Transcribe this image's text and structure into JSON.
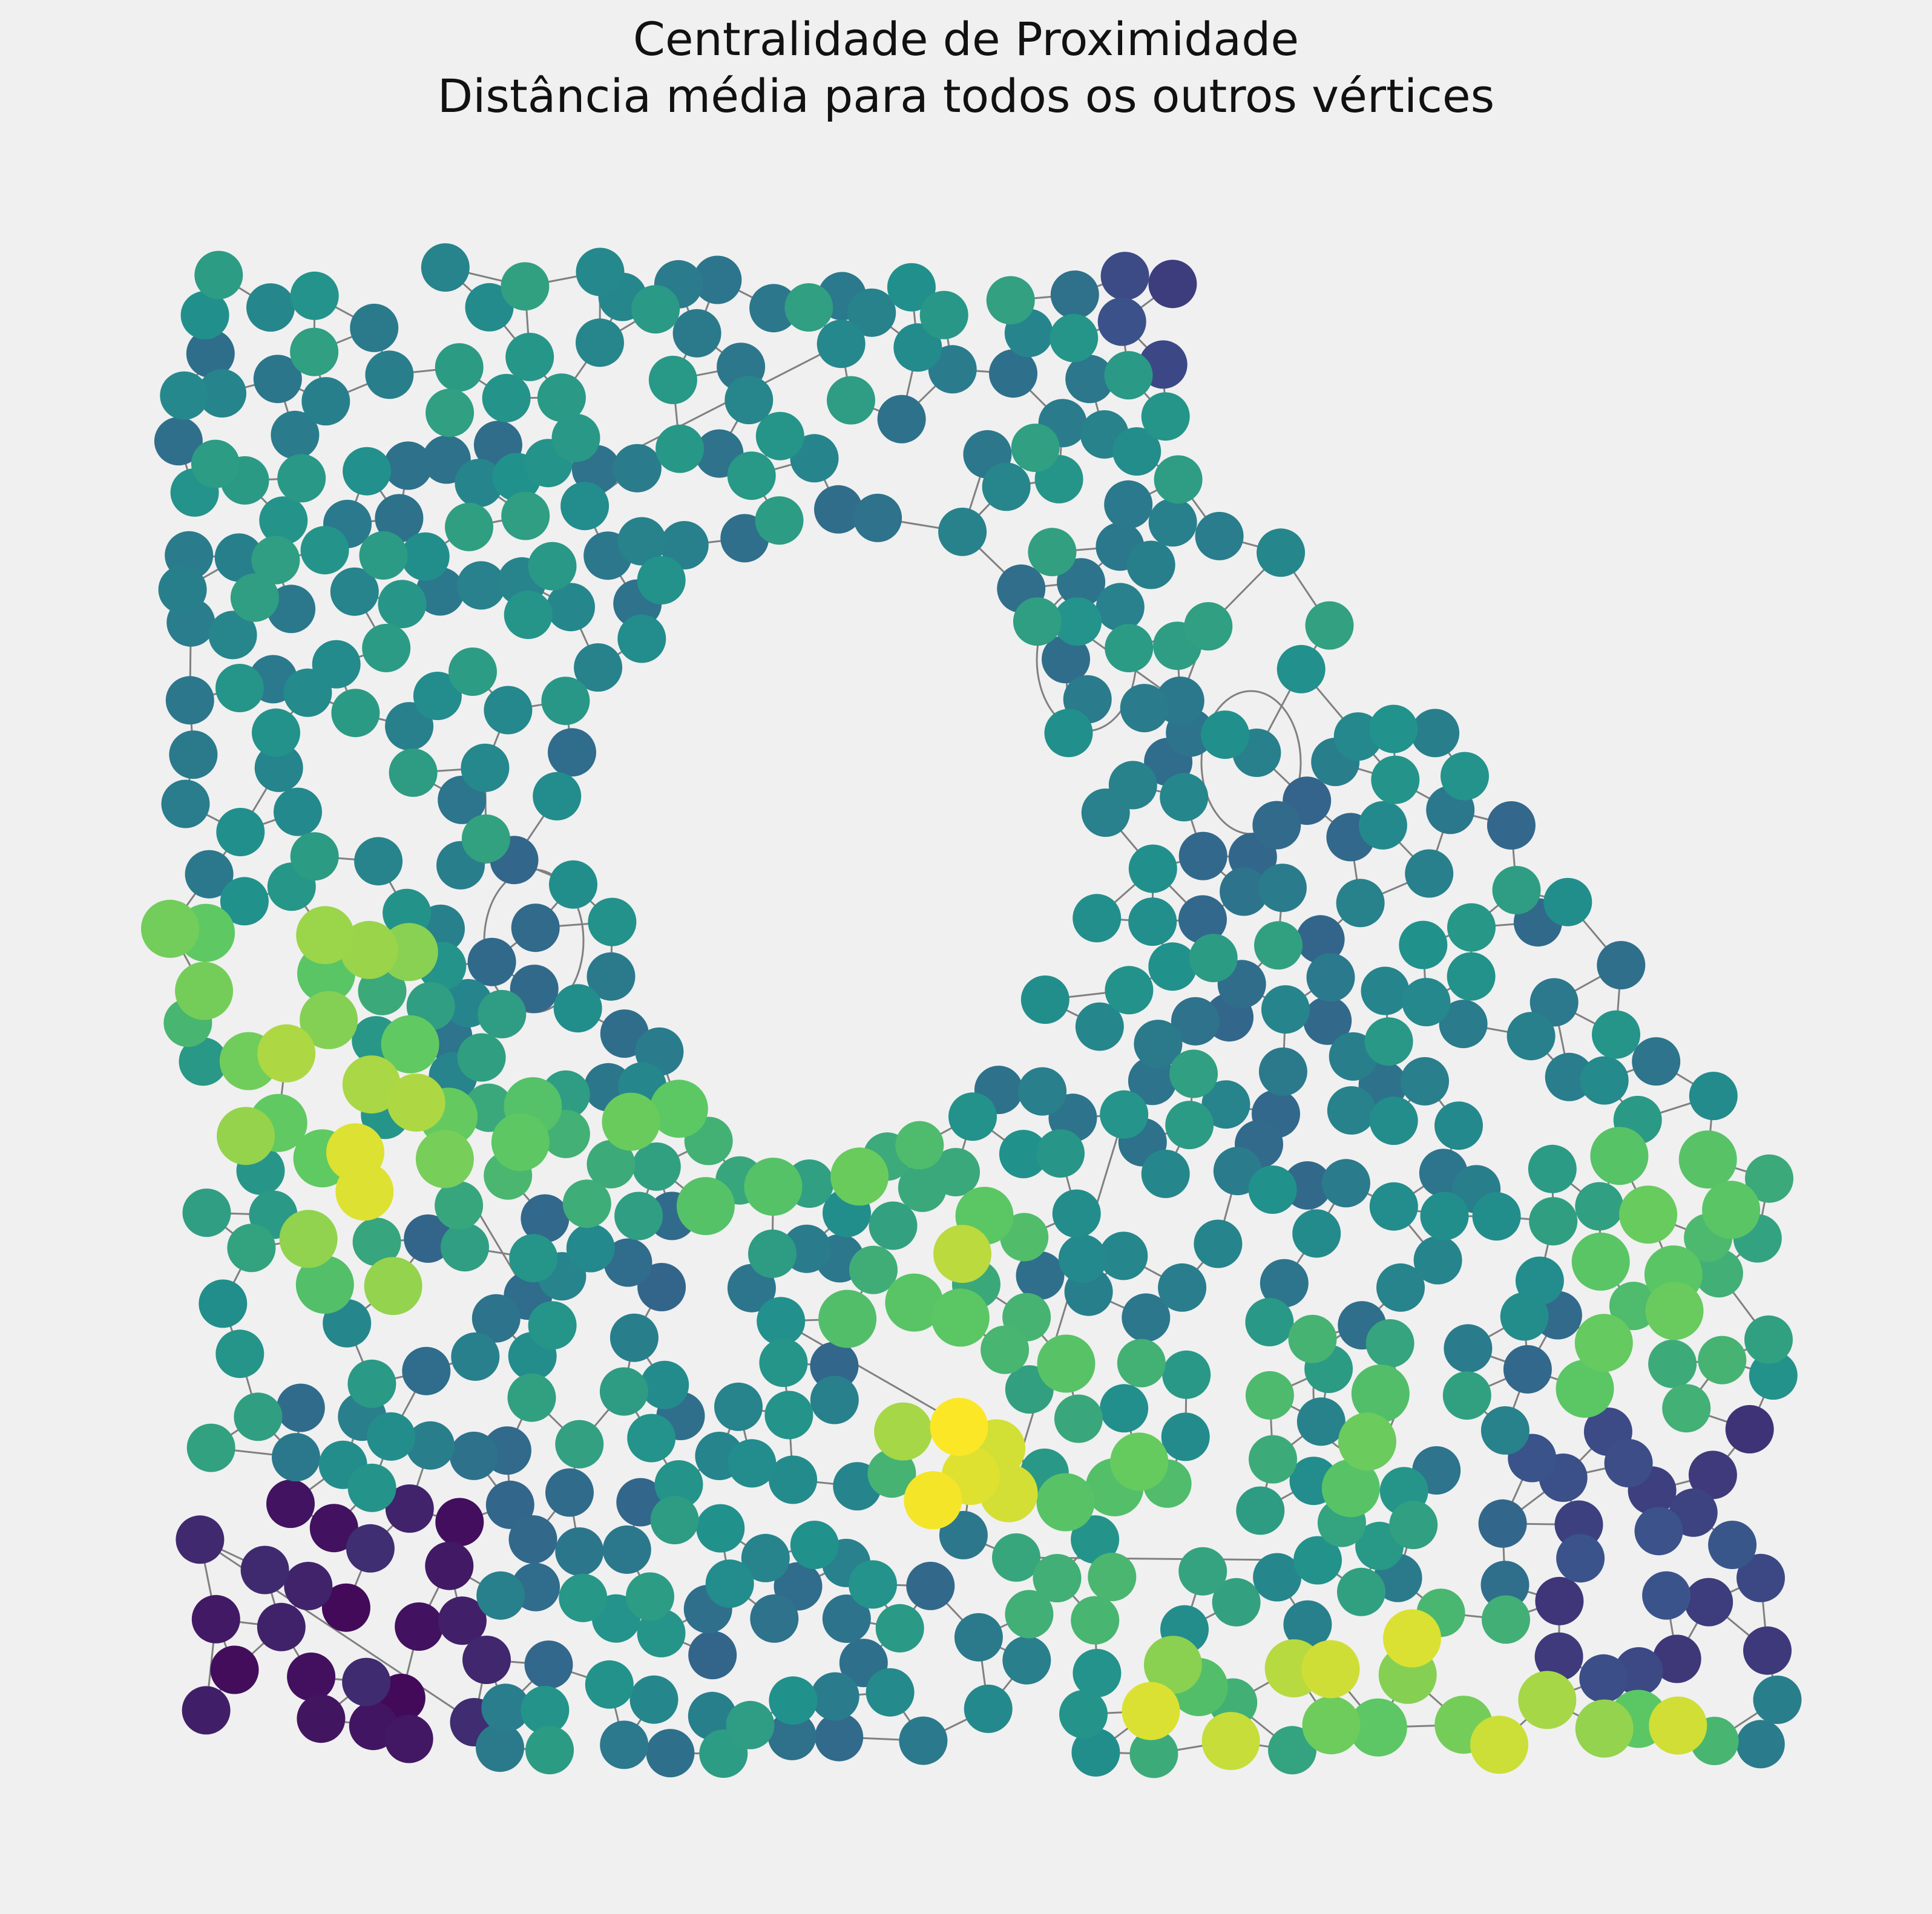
{
  "title": {
    "line1": "Centralidade de Proximidade",
    "line2": "Distância média para todos os outros vértices"
  },
  "chart_data": {
    "type": "network",
    "title": "Centralidade de Proximidade\nDistância média para todos os outros vértices",
    "colormap": "viridis",
    "colormap_stops": [
      "#440154",
      "#3b528b",
      "#21918c",
      "#5ec962",
      "#fde725"
    ],
    "edge_color": "#808080",
    "background": "#f0f0f0",
    "axes_visible": false,
    "grid": false,
    "legend": "none",
    "node_count_approx": 600
  }
}
